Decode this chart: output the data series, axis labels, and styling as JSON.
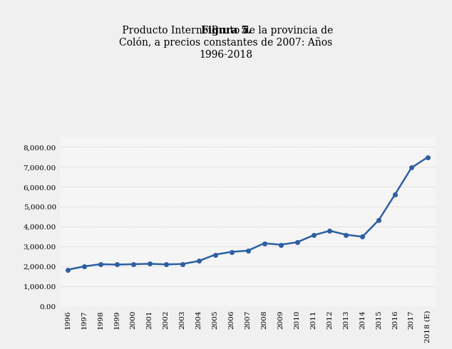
{
  "years": [
    "1996",
    "1997",
    "1998",
    "1999",
    "2000",
    "2001",
    "2002",
    "2003",
    "2004",
    "2005",
    "2006",
    "2007",
    "2008",
    "2009",
    "2010",
    "2011",
    "2012",
    "2013",
    "2014",
    "2015",
    "2016",
    "2017",
    "2018 (E)"
  ],
  "values": [
    1820,
    1990,
    2100,
    2080,
    2100,
    2120,
    2090,
    2110,
    2260,
    2580,
    2720,
    2780,
    3150,
    3080,
    3200,
    3550,
    3780,
    3580,
    3480,
    4320,
    5620,
    6950,
    7480
  ],
  "line_color": "#2e5fa3",
  "marker_color": "#2e5fa3",
  "bg_color": "#ffffff",
  "plot_bg_color": "#f5f5f5",
  "grid_color": "#cccccc",
  "title_bold": "Figura 5.",
  "title_normal": " Producto Interno Bruto de la provincia de\nColón, a precios constantes de 2007: Años\n1996-2018",
  "ylim": [
    0,
    8500
  ],
  "yticks": [
    0,
    1000,
    2000,
    3000,
    4000,
    5000,
    6000,
    7000,
    8000
  ],
  "ytick_labels": [
    "0.00",
    "1,000.00",
    "2,000.00",
    "3,000.00",
    "4,000.00",
    "5,000.00",
    "6,000.00",
    "7,000.00",
    "8,000.00"
  ],
  "title_fontsize": 10,
  "tick_fontsize": 7.5,
  "line_width": 1.8,
  "marker_size": 4
}
